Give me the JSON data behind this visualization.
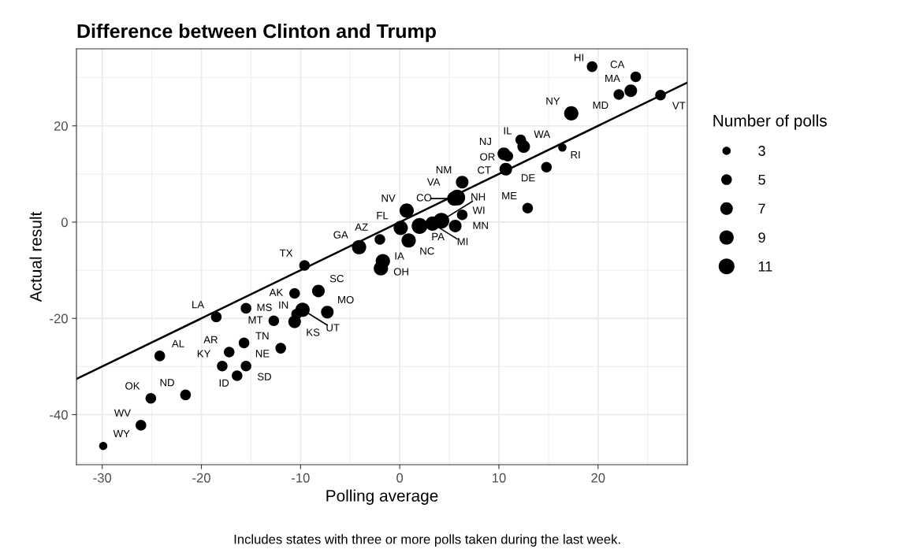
{
  "chart_data": {
    "type": "bubble",
    "title": "Difference between Clinton and Trump",
    "xlabel": "Polling average",
    "ylabel": "Actual result",
    "legend_title": "Number of polls",
    "grid": true,
    "marker": "circle",
    "xlim": [
      -32.6,
      29.0
    ],
    "ylim": [
      -50.4,
      36.0
    ],
    "xticks": [
      -30,
      -20,
      -10,
      0,
      10,
      20
    ],
    "yticks": [
      -40,
      -20,
      0,
      20
    ],
    "size_legend": [
      3,
      5,
      7,
      9,
      11
    ],
    "series": [
      {
        "color": "#000000",
        "x": [
          -29.9,
          -26.1,
          -25.1,
          -21.6,
          -24.2,
          -18.5,
          -15.5,
          -17.2,
          -15.7,
          -17.9,
          -15.5,
          -16.4,
          -12.7,
          -12.0,
          -10.6,
          -10.4,
          -10.6,
          -9.8,
          -9.6,
          -8.2,
          -7.3,
          -4.1,
          -2.0,
          0.1,
          0.7,
          0.9,
          -1.7,
          -1.9,
          2.0,
          3.3,
          4.2,
          5.6,
          6.3,
          5.8,
          6.3,
          12.9,
          10.7,
          14.8,
          19.4,
          23.8,
          23.3,
          22.1,
          26.3,
          17.3,
          12.2,
          12.5,
          10.5,
          10.9,
          16.4,
          5.5
        ],
        "values": [
          -46.5,
          -42.2,
          -36.6,
          -35.9,
          -27.8,
          -19.7,
          -17.9,
          -27.0,
          -25.1,
          -29.9,
          -29.9,
          -31.9,
          -20.5,
          -26.2,
          -14.8,
          -19.1,
          -20.7,
          -18.2,
          -9.0,
          -14.3,
          -18.7,
          -5.2,
          -3.6,
          -1.2,
          2.4,
          -3.8,
          -8.1,
          -9.6,
          -0.8,
          -0.3,
          0.3,
          -0.8,
          1.5,
          5.1,
          8.3,
          2.9,
          11.0,
          11.4,
          32.3,
          30.2,
          27.3,
          26.5,
          26.4,
          22.6,
          17.1,
          15.7,
          14.2,
          13.7,
          15.5,
          4.9
        ],
        "sizes": [
          3,
          5,
          5,
          5,
          5,
          5,
          5,
          5,
          5,
          5,
          5,
          5,
          5,
          5,
          5,
          5,
          7,
          9,
          5,
          7,
          7,
          9,
          5,
          9,
          9,
          9,
          9,
          9,
          11,
          9,
          11,
          7,
          5,
          11,
          7,
          5,
          7,
          5,
          5,
          5,
          7,
          5,
          5,
          9,
          5,
          7,
          7,
          5,
          3,
          9
        ]
      },
      {
        "type": "line",
        "color": "#000000",
        "marker": "none",
        "x": [
          -32.6,
          29.0
        ],
        "values": [
          -32.6,
          29.0
        ]
      }
    ],
    "annotations": [
      {
        "text": "WY",
        "x": -29.9,
        "y": -46.5
      },
      {
        "text": "WV",
        "x": -26.1,
        "y": -42.2
      },
      {
        "text": "OK",
        "x": -25.1,
        "y": -36.6
      },
      {
        "text": "ND",
        "x": -21.6,
        "y": -35.9
      },
      {
        "text": "AL",
        "x": -24.2,
        "y": -27.8
      },
      {
        "text": "LA",
        "x": -18.5,
        "y": -19.7
      },
      {
        "text": "MS",
        "x": -15.5,
        "y": -17.9
      },
      {
        "text": "AR",
        "x": -17.2,
        "y": -27.0
      },
      {
        "text": "NE",
        "x": -15.7,
        "y": -25.1
      },
      {
        "text": "KY",
        "x": -17.9,
        "y": -29.9
      },
      {
        "text": "SD",
        "x": -15.5,
        "y": -29.9
      },
      {
        "text": "ID",
        "x": -16.4,
        "y": -31.9
      },
      {
        "text": "MT",
        "x": -12.7,
        "y": -20.5
      },
      {
        "text": "TN",
        "x": -12.0,
        "y": -26.2
      },
      {
        "text": "AK",
        "x": -10.6,
        "y": -14.8
      },
      {
        "text": "IN",
        "x": -10.4,
        "y": -19.1
      },
      {
        "text": "KS",
        "x": -10.6,
        "y": -20.7
      },
      {
        "text": "UT",
        "x": -9.8,
        "y": -18.2
      },
      {
        "text": "TX",
        "x": -9.6,
        "y": -9.0
      },
      {
        "text": "SC",
        "x": -8.2,
        "y": -14.3
      },
      {
        "text": "MO",
        "x": -7.3,
        "y": -18.7
      },
      {
        "text": "GA",
        "x": -4.1,
        "y": -5.2
      },
      {
        "text": "AZ",
        "x": -2.0,
        "y": -3.6
      },
      {
        "text": "FL",
        "x": 0.1,
        "y": -1.2
      },
      {
        "text": "NV",
        "x": 0.7,
        "y": 2.4
      },
      {
        "text": "NC",
        "x": 0.9,
        "y": -3.8
      },
      {
        "text": "OH",
        "x": -1.7,
        "y": -8.1
      },
      {
        "text": "IA",
        "x": -1.9,
        "y": -9.6
      },
      {
        "text": "PA",
        "x": 2.0,
        "y": -0.8
      },
      {
        "text": "MI",
        "x": 3.3,
        "y": -0.3
      },
      {
        "text": "NH",
        "x": 4.2,
        "y": 0.3
      },
      {
        "text": "WI",
        "x": 5.6,
        "y": -0.8
      },
      {
        "text": "MN",
        "x": 6.3,
        "y": 1.5
      },
      {
        "text": "VA",
        "x": 5.8,
        "y": 5.1
      },
      {
        "text": "NM",
        "x": 6.3,
        "y": 8.3
      },
      {
        "text": "ME",
        "x": 12.9,
        "y": 2.9
      },
      {
        "text": "OR",
        "x": 10.7,
        "y": 11.0
      },
      {
        "text": "DE",
        "x": 14.8,
        "y": 11.4
      },
      {
        "text": "HI",
        "x": 19.4,
        "y": 32.3
      },
      {
        "text": "CA",
        "x": 23.8,
        "y": 30.2
      },
      {
        "text": "MA",
        "x": 23.3,
        "y": 27.3
      },
      {
        "text": "MD",
        "x": 22.1,
        "y": 26.5
      },
      {
        "text": "VT",
        "x": 26.3,
        "y": 26.4
      },
      {
        "text": "NY",
        "x": 17.3,
        "y": 22.6
      },
      {
        "text": "IL",
        "x": 12.2,
        "y": 17.1
      },
      {
        "text": "WA",
        "x": 12.5,
        "y": 15.7
      },
      {
        "text": "NJ",
        "x": 10.5,
        "y": 14.2
      },
      {
        "text": "CT",
        "x": 10.9,
        "y": 13.7
      },
      {
        "text": "RI",
        "x": 16.4,
        "y": 15.5
      },
      {
        "text": "CO",
        "x": 5.5,
        "y": 4.9
      },
      "Includes states with three or more polls taken during the last week."
    ]
  }
}
